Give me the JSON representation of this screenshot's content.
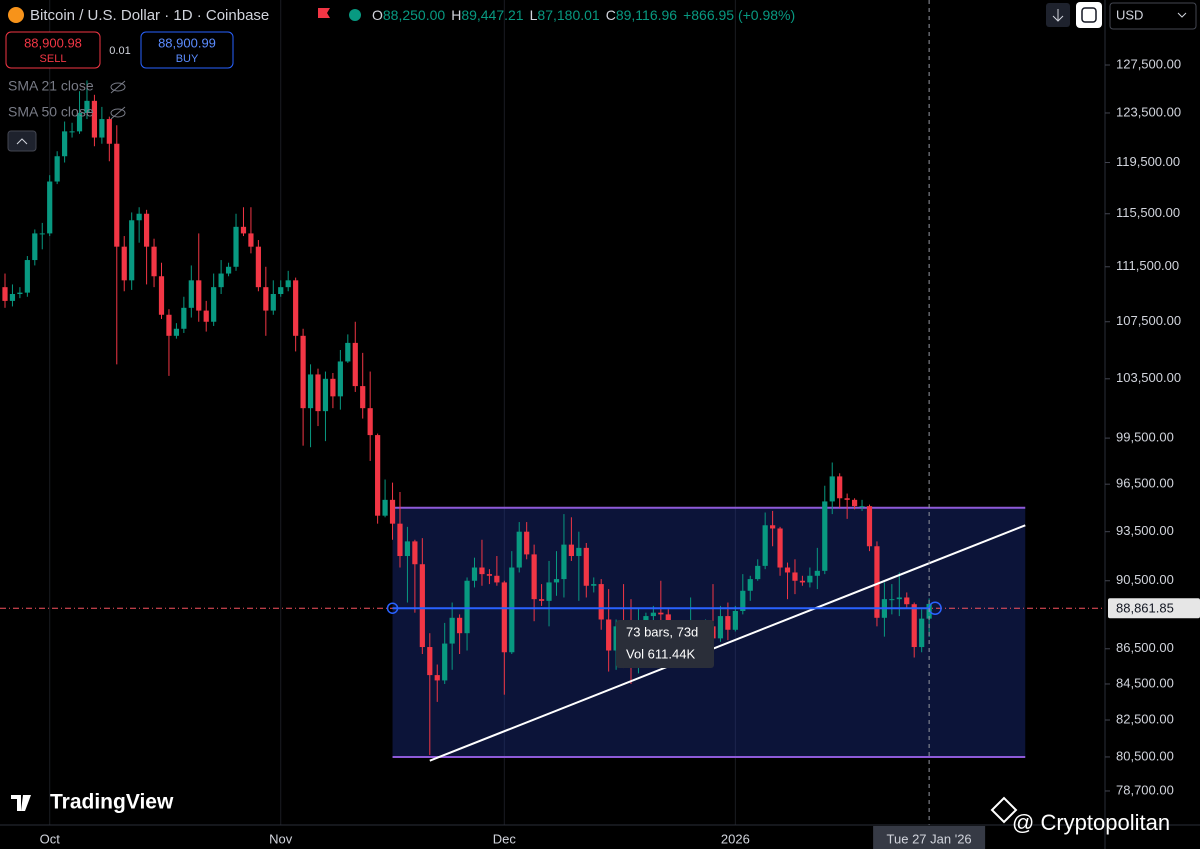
{
  "header": {
    "title": "Bitcoin / U.S. Dollar · 1D · Coinbase",
    "ohlc": [
      {
        "label": "O",
        "value": "88,250.00"
      },
      {
        "label": "H",
        "value": "89,447.21"
      },
      {
        "label": "L",
        "value": "87,180.01"
      },
      {
        "label": "C",
        "value": "89,116.96"
      }
    ],
    "change": "+866.95 (+0.98%)"
  },
  "trade": {
    "sell_price": "88,900.98",
    "sell": "SELL",
    "spread": "0.01",
    "buy_price": "88,900.99",
    "buy": "BUY"
  },
  "indicators": [
    "SMA 21 close",
    "SMA 50 close"
  ],
  "currency": "USD",
  "tooltip": {
    "bars": "73 bars, 73d",
    "volume": "Vol 611.44K"
  },
  "watermark": "TradingView",
  "credit": "@ Cryptopolitan",
  "chart_data": {
    "type": "candlestick",
    "log_y": true,
    "xlim": [
      -0.67,
      147.6
    ],
    "ylim": [
      76940,
      133130
    ],
    "up_color": "#089981",
    "down_color": "#f23645",
    "yticks": [
      {
        "value": 127500,
        "label": "127,500.00"
      },
      {
        "value": 123500,
        "label": "123,500.00"
      },
      {
        "value": 119500,
        "label": "119,500.00"
      },
      {
        "value": 115500,
        "label": "115,500.00"
      },
      {
        "value": 111500,
        "label": "111,500.00"
      },
      {
        "value": 107500,
        "label": "107,500.00"
      },
      {
        "value": 103500,
        "label": "103,500.00"
      },
      {
        "value": 99500,
        "label": "99,500.00"
      },
      {
        "value": 96500,
        "label": "96,500.00"
      },
      {
        "value": 93500,
        "label": "93,500.00"
      },
      {
        "value": 90500,
        "label": "90,500.00"
      },
      {
        "value": 86500,
        "label": "86,500.00"
      },
      {
        "value": 84500,
        "label": "84,500.00"
      },
      {
        "value": 82500,
        "label": "82,500.00"
      },
      {
        "value": 80500,
        "label": "80,500.00"
      },
      {
        "value": 78700,
        "label": "78,700.00"
      }
    ],
    "xticks": [
      {
        "value": 6,
        "label": "Oct"
      },
      {
        "value": 37,
        "label": "Nov"
      },
      {
        "value": 67,
        "label": "Dec"
      },
      {
        "value": 98,
        "label": "2026"
      }
    ],
    "last_price": {
      "value": 88861.85,
      "label": "88,861.85"
    },
    "crosshair": {
      "value": 124,
      "label": "Tue 27 Jan '26"
    },
    "range_box": {
      "start": 52,
      "end": 136.9,
      "top": 95000,
      "bottom": 80500
    },
    "trend_line": {
      "start": [
        57,
        80300
      ],
      "end": [
        136.9,
        93900
      ]
    },
    "open": [
      110000,
      109000,
      109500,
      109600,
      112000,
      114000,
      114000,
      118000,
      120000,
      122000,
      122000,
      123500,
      124500,
      121500,
      123000,
      121000,
      113000,
      110500,
      115000,
      115500,
      113000,
      110800,
      108000,
      106500,
      107000,
      108500,
      110500,
      108300,
      107500,
      110000,
      111000,
      111500,
      114500,
      114000,
      113000,
      110000,
      108300,
      109500,
      110000,
      110500,
      106500,
      101500,
      103800,
      101300,
      103500,
      102300,
      104700,
      106000,
      103000,
      101500,
      99700,
      94500,
      95500,
      94000,
      92000,
      92900,
      91500,
      86600,
      85000,
      84700,
      86800,
      88300,
      87400,
      90500,
      91300,
      90900,
      90800,
      90400,
      86300,
      91300,
      93500,
      92100,
      89400,
      89300,
      90400,
      90600,
      92700,
      92000,
      92500,
      90200,
      90300,
      88200,
      86400,
      87800,
      86200,
      85500,
      88100,
      88400,
      88600,
      88500,
      87400,
      87600,
      87200,
      87300,
      87800,
      87800,
      87100,
      88400,
      87600,
      88700,
      89900,
      90600,
      91400,
      93900,
      93700,
      91300,
      91000,
      90500,
      90400,
      90800,
      91100,
      95400,
      97000,
      95600,
      95500,
      95100,
      95100,
      92600,
      88300,
      89400,
      89400,
      89500,
      89100,
      86600,
      88250
    ],
    "high": [
      111000,
      110200,
      110000,
      112300,
      114300,
      114800,
      118500,
      120400,
      122800,
      122700,
      125300,
      126200,
      125000,
      124000,
      123200,
      122500,
      113800,
      115600,
      116000,
      115800,
      113600,
      111800,
      108400,
      107400,
      109300,
      111600,
      114000,
      109000,
      111000,
      112000,
      111800,
      115500,
      116000,
      116000,
      113500,
      111500,
      110500,
      110500,
      111200,
      110700,
      107000,
      104500,
      104200,
      104000,
      103900,
      105500,
      106600,
      107500,
      105300,
      104000,
      99800,
      96800,
      96600,
      96000,
      93800,
      93000,
      93100,
      87400,
      85600,
      88000,
      89200,
      88500,
      90700,
      91900,
      93000,
      91200,
      92000,
      90500,
      92300,
      94100,
      94100,
      92700,
      90300,
      91700,
      92300,
      94600,
      94400,
      93500,
      92800,
      90700,
      90600,
      90000,
      88200,
      90300,
      89400,
      88900,
      88600,
      89000,
      90500,
      88800,
      87900,
      88000,
      89500,
      88000,
      88200,
      90300,
      89000,
      89200,
      89000,
      90900,
      90800,
      91800,
      94700,
      94800,
      93800,
      91600,
      91800,
      90800,
      91300,
      92500,
      96400,
      97900,
      97200,
      95900,
      95600,
      95500,
      95200,
      92900,
      90400,
      90300,
      91000,
      89800,
      89200,
      88800,
      89447.21
    ],
    "low": [
      108500,
      108600,
      109200,
      109300,
      111600,
      112800,
      113800,
      117800,
      119500,
      121500,
      121800,
      123000,
      120800,
      121000,
      119600,
      104500,
      109700,
      109800,
      113300,
      110200,
      110000,
      107700,
      103700,
      106300,
      106700,
      107800,
      107500,
      106800,
      107200,
      109500,
      110800,
      111200,
      113800,
      112500,
      109700,
      106500,
      108000,
      109300,
      109700,
      105400,
      99000,
      98900,
      100300,
      99300,
      101500,
      101400,
      104600,
      102600,
      100800,
      98000,
      94000,
      94400,
      93000,
      91300,
      89200,
      88600,
      86200,
      80600,
      83500,
      84500,
      85300,
      86200,
      86400,
      90100,
      90200,
      90300,
      90200,
      83900,
      86200,
      91000,
      91800,
      88100,
      89000,
      87800,
      89600,
      89500,
      91700,
      89300,
      89500,
      89800,
      87600,
      85200,
      85300,
      85400,
      84500,
      85100,
      87800,
      87700,
      87900,
      86600,
      86600,
      86900,
      86700,
      87200,
      87400,
      86800,
      86900,
      87000,
      87500,
      88500,
      89300,
      90500,
      91200,
      92600,
      90800,
      89400,
      89700,
      90200,
      90100,
      90000,
      90900,
      94600,
      95000,
      94300,
      94900,
      94800,
      92300,
      87800,
      87200,
      88500,
      88400,
      88900,
      86000,
      86300,
      87180.01
    ],
    "close": [
      109000,
      109500,
      109600,
      112000,
      114000,
      114000,
      118000,
      120000,
      122000,
      122000,
      123500,
      124500,
      121500,
      123000,
      121000,
      113000,
      110500,
      115000,
      115500,
      113000,
      110800,
      108000,
      106500,
      107000,
      108500,
      110500,
      108300,
      107500,
      110000,
      111000,
      111500,
      114500,
      114000,
      113000,
      110000,
      108300,
      109500,
      110000,
      110500,
      106500,
      101500,
      103800,
      101300,
      103500,
      102300,
      104700,
      106000,
      103000,
      101500,
      99700,
      94500,
      95500,
      94000,
      92000,
      92900,
      91500,
      86600,
      85000,
      84700,
      86800,
      88300,
      87400,
      90500,
      91300,
      90900,
      90800,
      90400,
      86300,
      91300,
      93500,
      92100,
      89400,
      89300,
      90400,
      90600,
      92700,
      92000,
      92500,
      90200,
      90300,
      88200,
      86400,
      87800,
      86200,
      85500,
      88100,
      88400,
      88600,
      88500,
      87400,
      87600,
      87200,
      87300,
      87800,
      87800,
      87100,
      88400,
      87600,
      88700,
      89900,
      90600,
      91400,
      93900,
      93700,
      91300,
      91000,
      90500,
      90400,
      90800,
      91100,
      95400,
      97000,
      95600,
      95500,
      95100,
      95100,
      92600,
      88300,
      89400,
      89400,
      89500,
      89100,
      86600,
      88250,
      89116.96
    ]
  }
}
